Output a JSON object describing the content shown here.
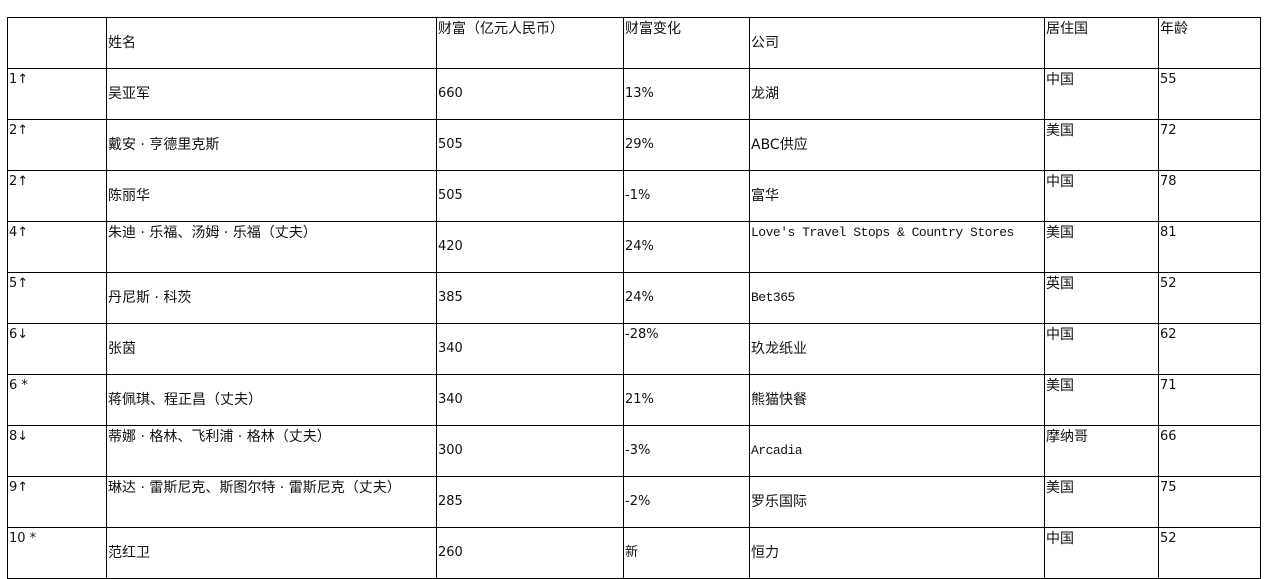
{
  "headers": [
    "",
    "姓名",
    "财富（亿元人民币）",
    "财富变化",
    "公司",
    "居住国",
    "年龄"
  ],
  "rows": [
    [
      "1↑",
      "吴亚军",
      "660",
      "13%",
      "龙湖",
      "中国",
      "55"
    ],
    [
      "2↑",
      "戴安 · 亨德里克斯",
      "505",
      "29%",
      "ABC供应",
      "美国",
      "72"
    ],
    [
      "2↑",
      "陈丽华",
      "505",
      "-1%",
      "富华",
      "中国",
      "78"
    ],
    [
      "4↑",
      "朱迪 · 乐福、汤姆 · 乐福（丈夫）",
      "420",
      "24%",
      "Love's Travel Stops & Country Stores",
      "美国",
      "81"
    ],
    [
      "5↑",
      "丹尼斯 · 科茨",
      "385",
      "24%",
      "Bet365",
      "英国",
      "52"
    ],
    [
      "6↓",
      "张茵",
      "340",
      "-28%",
      "玖龙纸业",
      "中国",
      "62"
    ],
    [
      "6 *",
      "蒋佩琪、程正昌（丈夫）",
      "340",
      "21%",
      "熊猫快餐",
      "美国",
      "71"
    ],
    [
      "8↓",
      "蒂娜 · 格林、飞利浦 · 格林（丈夫）",
      "300",
      "-3%",
      "Arcadia",
      "摩纳哥",
      "66"
    ],
    [
      "9↑",
      "琳达 · 雷斯尼克、斯图尔特 · 雷斯尼克（丈夫）",
      "285",
      "-2%",
      "罗乐国际",
      "美国",
      "75"
    ],
    [
      "10 *",
      "范红卫",
      "260",
      "新",
      "恒力",
      "中国",
      "52"
    ]
  ]
}
